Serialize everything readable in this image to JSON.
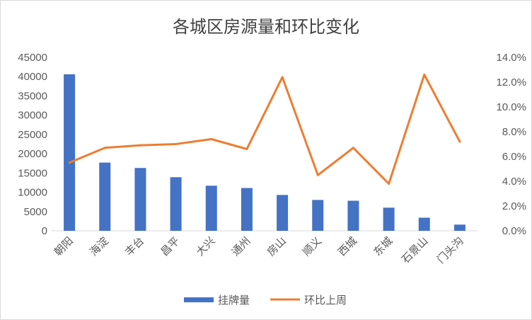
{
  "chart_data": {
    "type": "bar",
    "title": "各城区房源量和环比变化",
    "categories": [
      "朝阳",
      "海淀",
      "丰台",
      "昌平",
      "大兴",
      "通州",
      "房山",
      "顺义",
      "西城",
      "东城",
      "石景山",
      "门头沟"
    ],
    "series": [
      {
        "name": "挂牌量",
        "type": "bar",
        "axis": "left",
        "color": "#4472C4",
        "values": [
          40600,
          17700,
          16300,
          13900,
          11700,
          11100,
          9300,
          8000,
          7800,
          6000,
          3400,
          1600
        ]
      },
      {
        "name": "环比上周",
        "type": "line",
        "axis": "right",
        "color": "#ED7D31",
        "values": [
          5.5,
          6.7,
          6.9,
          7.0,
          7.4,
          6.6,
          12.4,
          4.5,
          6.7,
          3.8,
          12.6,
          7.2
        ]
      }
    ],
    "y_left": {
      "ylim": [
        0,
        45000
      ],
      "ticks": [
        "0",
        "5000",
        "10000",
        "15000",
        "20000",
        "25000",
        "30000",
        "35000",
        "40000",
        "45000"
      ]
    },
    "y_right": {
      "ylim": [
        0,
        14
      ],
      "ticks": [
        "0.0%",
        "2.0%",
        "4.0%",
        "6.0%",
        "8.0%",
        "10.0%",
        "12.0%",
        "14.0%"
      ]
    },
    "grid": false,
    "legend": "bottom"
  }
}
